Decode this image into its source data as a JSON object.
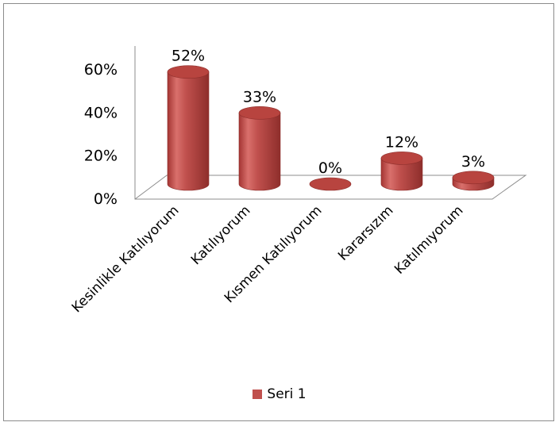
{
  "chart_data": {
    "type": "bar",
    "categories": [
      "Kesinlikle Katılıyorum",
      "Katılıyorum",
      "Kısmen Katılıyorum",
      "Kararsızım",
      "Katılmıyorum"
    ],
    "series": [
      {
        "name": "Seri 1",
        "values": [
          52,
          33,
          0,
          12,
          3
        ]
      }
    ],
    "data_labels": [
      "52%",
      "33%",
      "0%",
      "12%",
      "3%"
    ],
    "y_ticks": [
      "0%",
      "20%",
      "40%",
      "60%"
    ],
    "ylim": [
      0,
      60
    ],
    "legend_position": "bottom",
    "grid": false,
    "bar_color": "#c0504d"
  }
}
